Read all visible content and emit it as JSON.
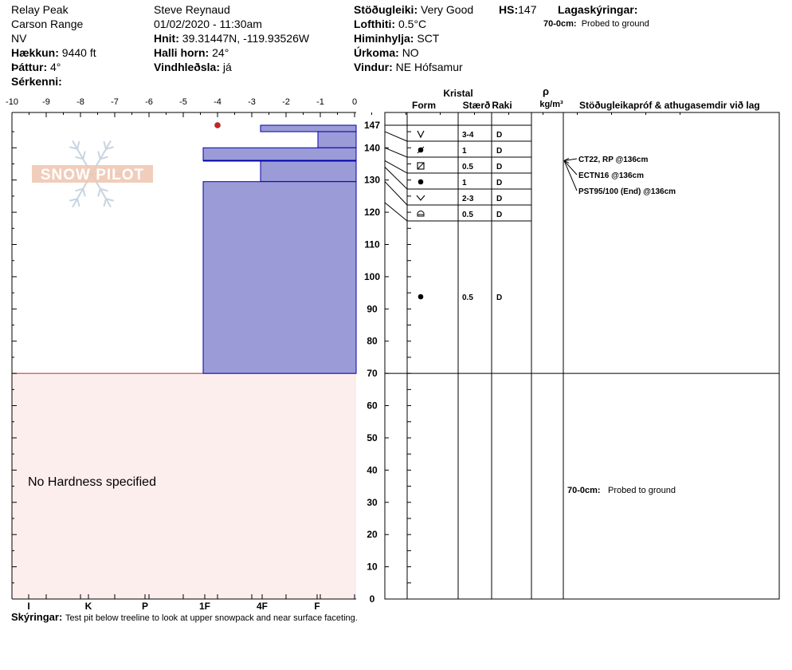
{
  "header": {
    "location": "Relay Peak",
    "range": "Carson Range",
    "state": "NV",
    "elevation_label": "Hækkun:",
    "elevation_value": "9440 ft",
    "aspect_label": "Þáttur:",
    "aspect_value": "4°",
    "specifics_label": "Sérkenni:",
    "observer": "Steve Reynaud",
    "datetime": "01/02/2020 - 11:30am",
    "coords_label": "Hnit:",
    "coords_value": "39.31447N, -119.93526W",
    "slope_label": "Halli horn:",
    "slope_value": "24°",
    "wind_loading_label": "Vindhleðsla:",
    "wind_loading_value": "já",
    "stability_label": "Stöðugleiki:",
    "stability_value": "Very Good",
    "hs_label": "HS:",
    "hs_value": "147",
    "air_temp_label": "Lofthiti:",
    "air_temp_value": "0.5°C",
    "sky_label": "Himinhylja:",
    "sky_value": "SCT",
    "precip_label": "Úrkoma:",
    "precip_value": "NO",
    "wind_label": "Vindur:",
    "wind_value": "NE Hófsamur",
    "layer_notes_label": "Lagaskýringar:",
    "layer_note_range": "70-0cm:",
    "layer_note_text": "Probed to ground"
  },
  "footer": {
    "notes_label": "Skýringar:",
    "notes_text": "Test pit below treeline to look at upper snowpack and near surface faceting."
  },
  "logo": {
    "text": "SNOW PILOT"
  },
  "no_hardness_text": "No Hardness specified",
  "table_headers": {
    "crystal": "Kristal",
    "form": "Form",
    "size": "Stærð",
    "moisture": "Raki",
    "rho": "ρ",
    "density_unit": "kg/m³",
    "stability_col": "Stöðugleikapróf & athugasemdir við lag"
  },
  "colors": {
    "hardness_fill": "#9b9bd8",
    "hardness_stroke": "#0000aa",
    "no_hardness_fill": "#fdeeee",
    "temp_point": "#cc2222",
    "logo": "#f0c8b4"
  },
  "chart_data": {
    "type": "snow_profile",
    "temp_axis": {
      "ticks": [
        "-10",
        "-9",
        "-8",
        "-7",
        "-6",
        "-5",
        "-4",
        "-3",
        "-2",
        "-1",
        "0"
      ],
      "range": [
        -10,
        0
      ]
    },
    "hardness_axis": {
      "ticks": [
        "I",
        "K",
        "P",
        "1F",
        "4F",
        "F"
      ]
    },
    "height_axis": {
      "range": [
        0,
        147
      ],
      "ticks": [
        0,
        10,
        20,
        30,
        40,
        50,
        60,
        70,
        80,
        90,
        100,
        110,
        120,
        130,
        140,
        147
      ]
    },
    "temperature_points": [
      {
        "depth": 147,
        "temp": -4
      }
    ],
    "hardness_layers": [
      {
        "top": 147,
        "bottom": 145,
        "hardness": "F-"
      },
      {
        "top": 145,
        "bottom": 140,
        "hardness": "F"
      },
      {
        "top": 140,
        "bottom": 136,
        "hardness": "4F-"
      },
      {
        "top": 136,
        "bottom": 129.5,
        "hardness": "4F"
      },
      {
        "top": 129.5,
        "bottom": 70,
        "hardness": "1F-"
      }
    ],
    "no_hardness_range": [
      70,
      0
    ],
    "crystal_layers": [
      {
        "form_icon": "chevron-v",
        "size": "3-4",
        "moisture": "D"
      },
      {
        "form_icon": "dot-slash",
        "size": "1",
        "moisture": "D"
      },
      {
        "form_icon": "square-slash",
        "size": "0.5",
        "moisture": "D"
      },
      {
        "form_icon": "dot",
        "size": "1",
        "moisture": "D"
      },
      {
        "form_icon": "chevron-wide",
        "size": "2-3",
        "moisture": "D"
      },
      {
        "form_icon": "cup",
        "size": "0.5",
        "moisture": "D"
      }
    ],
    "lower_layer": {
      "form_icon": "dot",
      "size": "0.5",
      "moisture": "D"
    },
    "stability_tests": [
      "CT22, RP @136cm",
      "ECTN16 @136cm",
      "PST95/100 (End) @136cm"
    ],
    "test_depth": 136,
    "lower_comment_range": "70-0cm:",
    "lower_comment_text": "Probed to ground"
  }
}
